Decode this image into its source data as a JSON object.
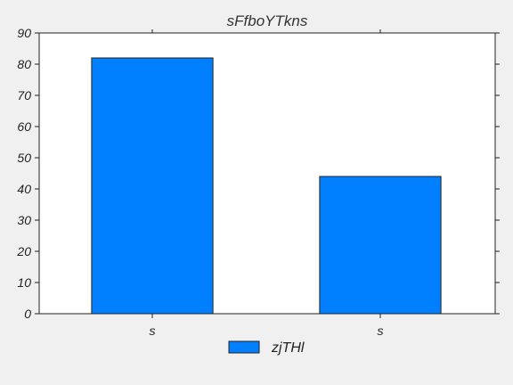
{
  "chart_data": {
    "type": "bar",
    "title": "sFfboYTkns",
    "categories": [
      "s",
      "s"
    ],
    "series": [
      {
        "name": "zjTHl",
        "values": [
          82,
          44
        ],
        "color": "#0080ff"
      }
    ],
    "xlabel": "",
    "ylabel": "",
    "ylim": [
      0,
      90
    ],
    "yticks": [
      0,
      10,
      20,
      30,
      40,
      50,
      60,
      70,
      80,
      90
    ],
    "grid": false,
    "legend": "bottom-center",
    "plot_background": "#ffffff",
    "page_background": "#f0f0f0"
  }
}
